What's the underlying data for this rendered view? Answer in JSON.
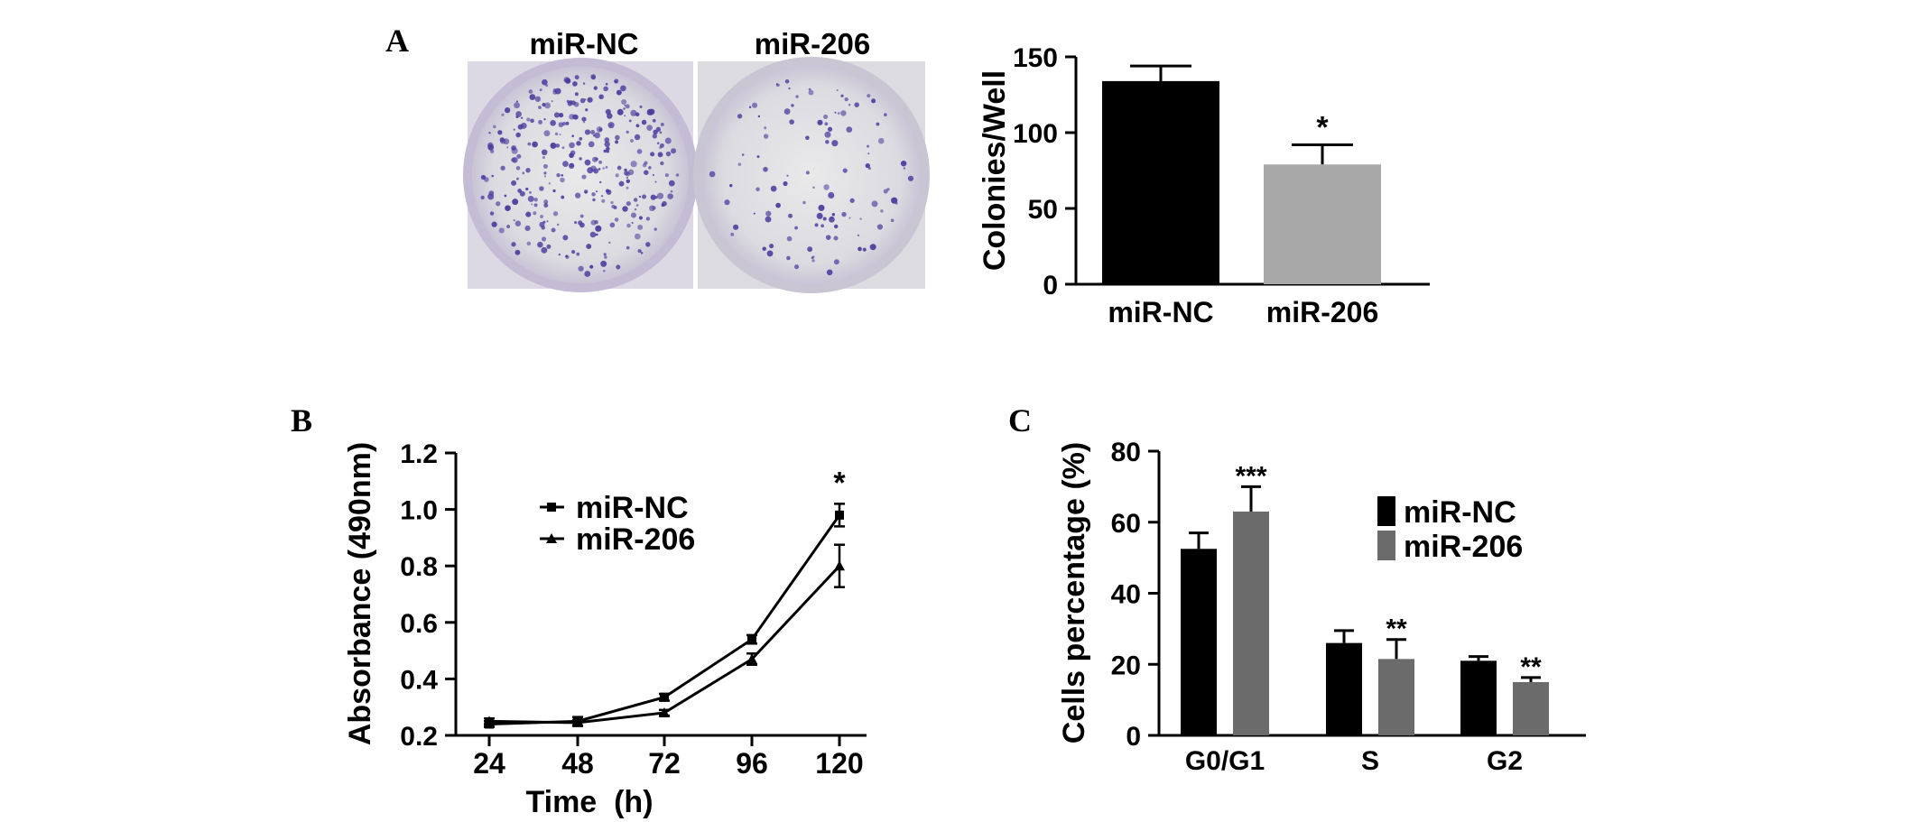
{
  "panels": {
    "A": {
      "label": "A",
      "photo_labels": [
        "miR-NC",
        "miR-206"
      ],
      "colors": {
        "nc": "#000000",
        "mir206": "#a8a8a8",
        "dish_rim": "#cfc7dc",
        "stain": "#4b3c9e"
      }
    },
    "B": {
      "label": "B"
    },
    "C": {
      "label": "C",
      "colors": {
        "nc": "#000000",
        "mir206": "#6b6b6b"
      }
    }
  },
  "chart_data": [
    {
      "id": "A",
      "type": "bar",
      "categories": [
        "miR-NC",
        "miR-206"
      ],
      "values": [
        134,
        79
      ],
      "errors": [
        10,
        13
      ],
      "significance": [
        "",
        "*"
      ],
      "ylabel": "Colonies/Well",
      "xlabel": "",
      "ylim": [
        0,
        150
      ],
      "yticks": [
        "0",
        "50",
        "100",
        "150"
      ]
    },
    {
      "id": "B",
      "type": "line",
      "x": [
        24,
        48,
        72,
        96,
        120
      ],
      "xticks": [
        "24",
        "48",
        "72",
        "96",
        "120"
      ],
      "series": [
        {
          "name": "miR-NC",
          "values": [
            0.24,
            0.25,
            0.335,
            0.54,
            0.98
          ],
          "errors": [
            0.01,
            0.015,
            0.012,
            0.015,
            0.04
          ],
          "marker": "square"
        },
        {
          "name": "miR-206",
          "values": [
            0.25,
            0.245,
            0.28,
            0.47,
            0.8
          ],
          "errors": [
            0.01,
            0.01,
            0.01,
            0.02,
            0.075
          ],
          "marker": "triangle"
        }
      ],
      "significance": {
        "x": 120,
        "text": "*"
      },
      "ylabel": "Absorbance (490nm)",
      "xlabel": "Time  (h)",
      "ylim": [
        0.2,
        1.2
      ],
      "yticks": [
        "0.2",
        "0.4",
        "0.6",
        "0.8",
        "1.0",
        "1.2"
      ],
      "legend_position": "upper-middle"
    },
    {
      "id": "C",
      "type": "bar",
      "categories": [
        "G0/G1",
        "S",
        "G2"
      ],
      "series": [
        {
          "name": "miR-NC",
          "values": [
            52.5,
            26,
            21
          ],
          "errors": [
            4.5,
            3.5,
            1.2
          ]
        },
        {
          "name": "miR-206",
          "values": [
            63,
            21.5,
            15
          ],
          "errors": [
            7,
            5.5,
            1.3
          ]
        }
      ],
      "significance": [
        "***",
        "**",
        "**"
      ],
      "ylabel": "Cells percentage (%)",
      "xlabel": "",
      "ylim": [
        0,
        80
      ],
      "yticks": [
        "0",
        "20",
        "40",
        "60",
        "80"
      ],
      "legend_position": "upper-right"
    }
  ]
}
